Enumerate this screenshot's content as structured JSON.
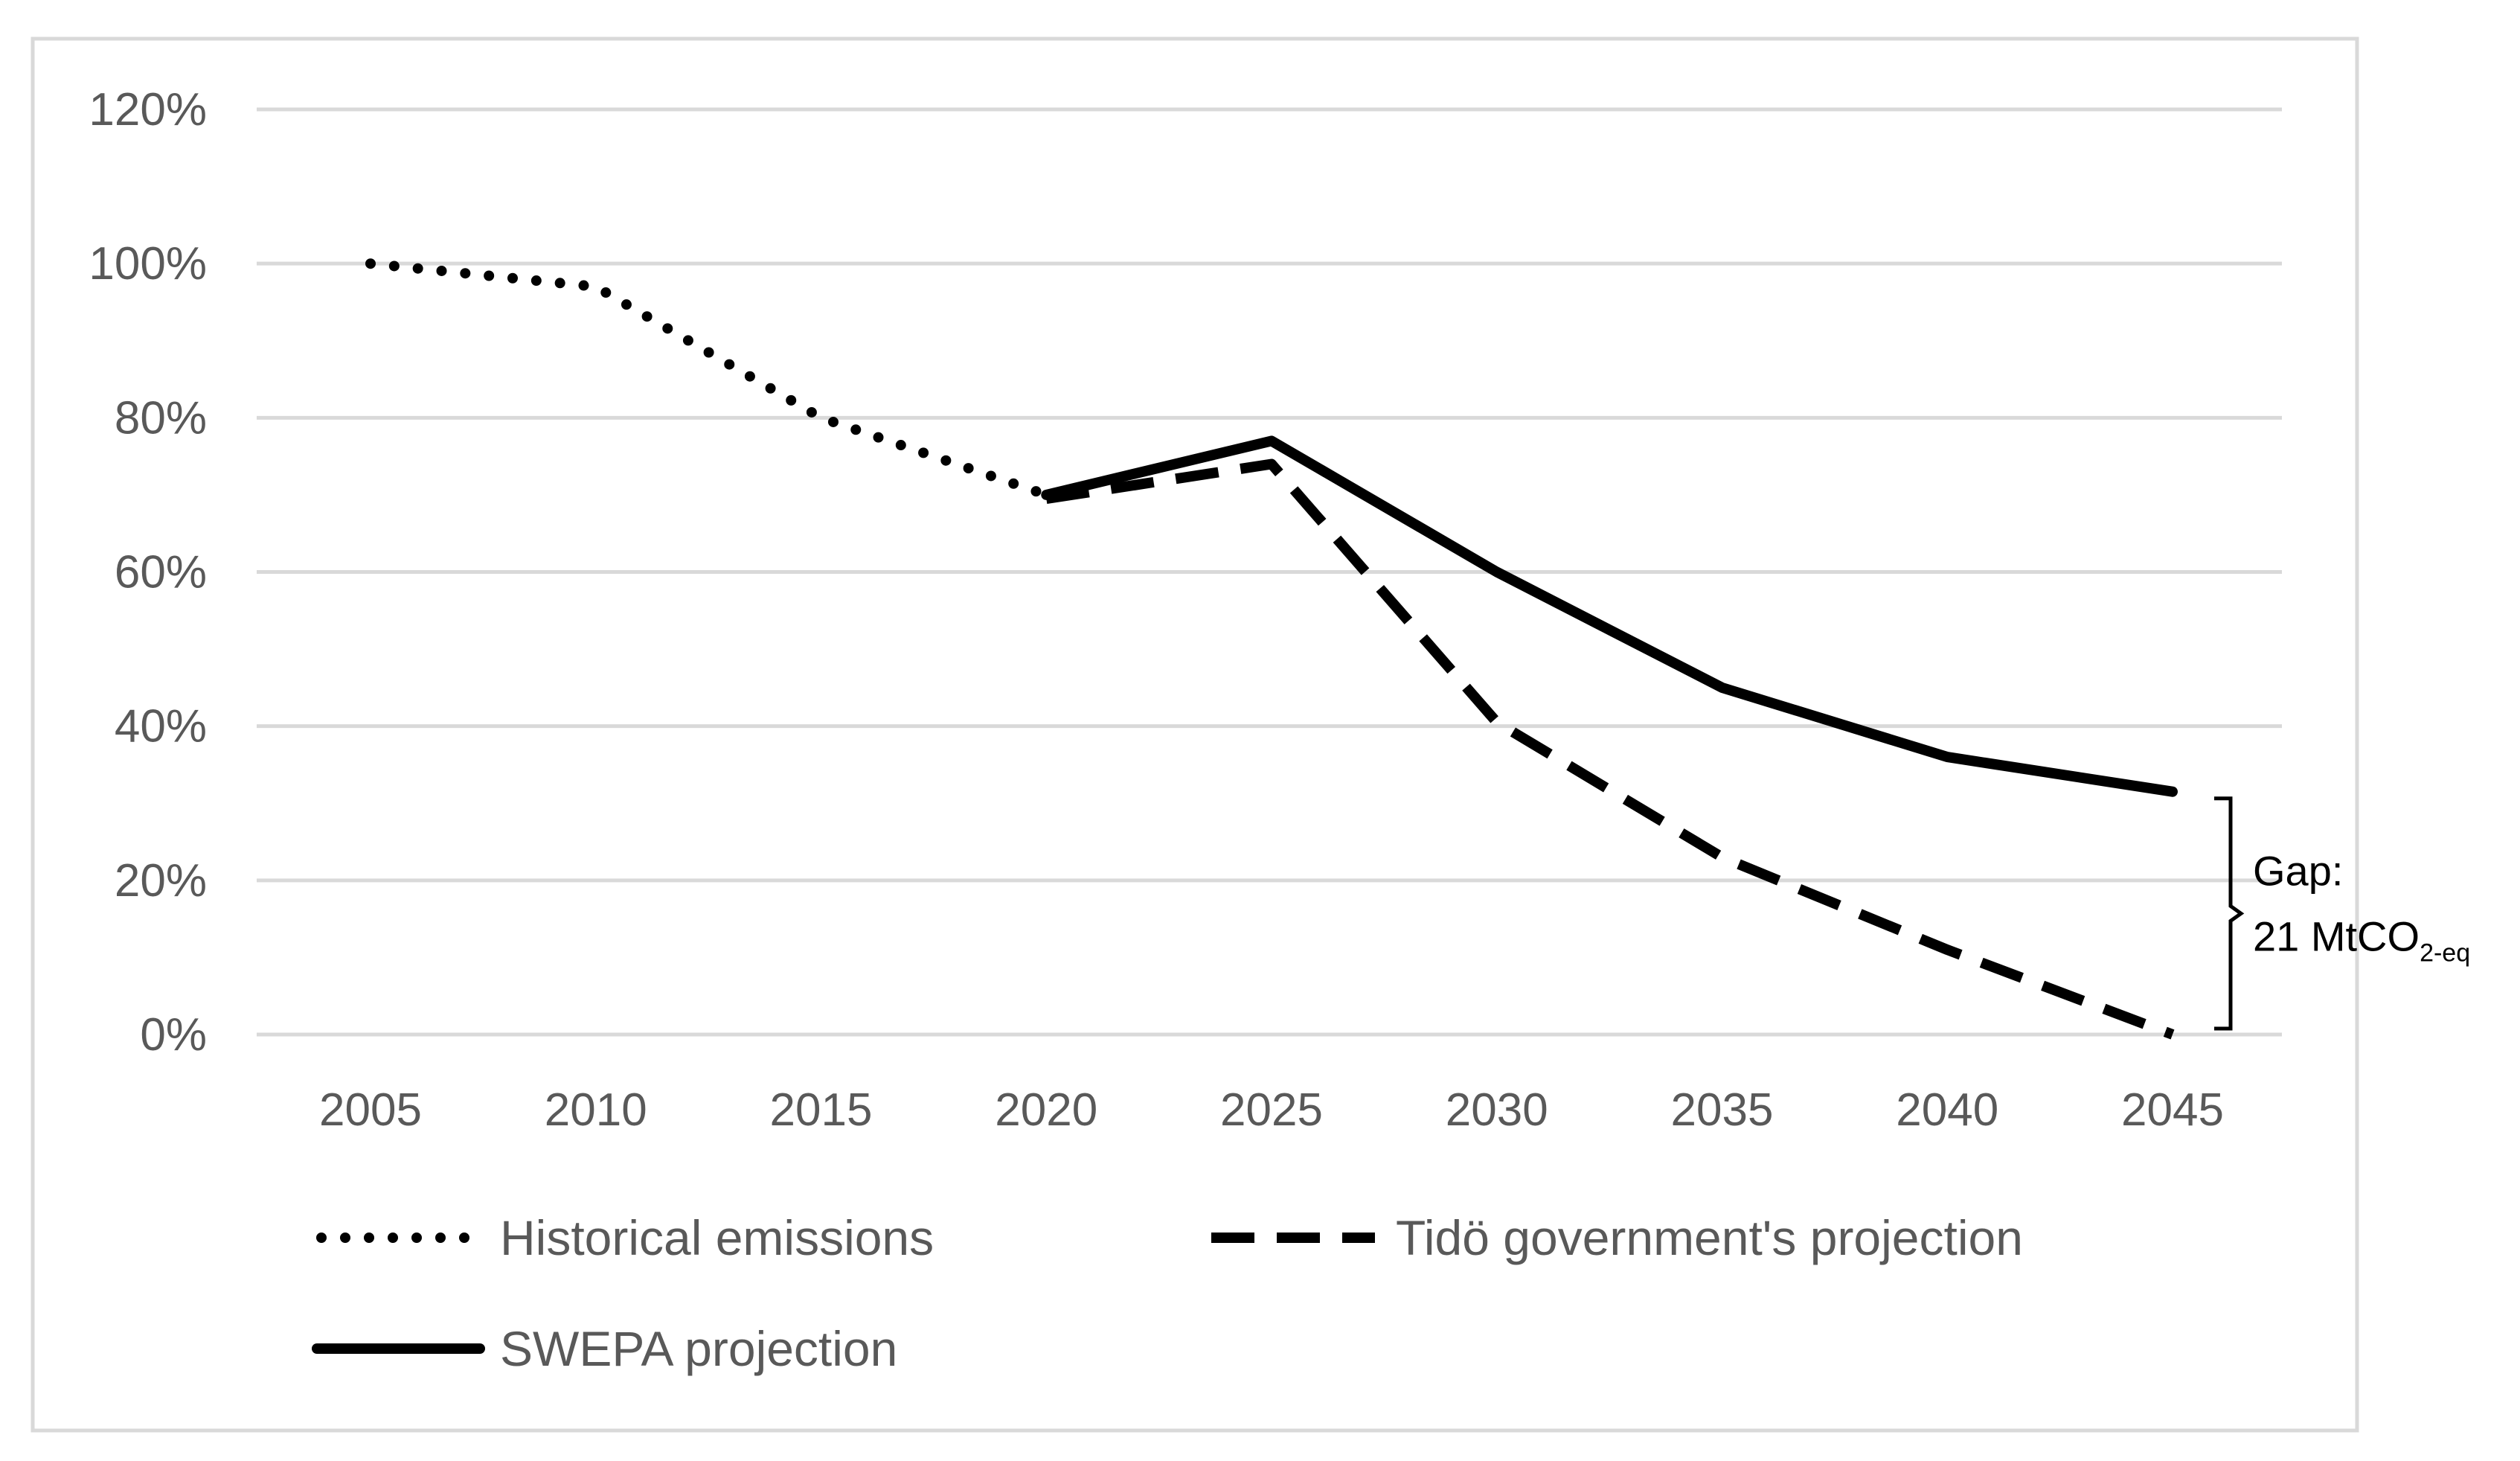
{
  "chart_data": {
    "type": "line",
    "title": "",
    "xlabel": "",
    "ylabel": "",
    "x": [
      2005,
      2010,
      2015,
      2020,
      2025,
      2030,
      2035,
      2040,
      2045
    ],
    "x_tick_labels": [
      "2005",
      "2010",
      "2015",
      "2020",
      "2025",
      "2030",
      "2035",
      "2040",
      "2045"
    ],
    "ylim": [
      0,
      120
    ],
    "y_ticks": [
      0,
      20,
      40,
      60,
      80,
      100,
      120
    ],
    "y_tick_labels": [
      "0%",
      "20%",
      "40%",
      "60%",
      "80%",
      "100%",
      "120%"
    ],
    "grid": "horizontal",
    "legend_position": "bottom",
    "series": [
      {
        "name": "Historical emissions",
        "style": "dotted",
        "color": "#000000",
        "points": [
          {
            "x": 2005,
            "y": 100
          },
          {
            "x": 2010,
            "y": 97
          },
          {
            "x": 2015,
            "y": 80
          },
          {
            "x": 2020,
            "y": 70
          }
        ]
      },
      {
        "name": "Tidö government's projection",
        "style": "dashed",
        "color": "#000000",
        "points": [
          {
            "x": 2020,
            "y": 69.5
          },
          {
            "x": 2025,
            "y": 74
          },
          {
            "x": 2030,
            "y": 40.5
          },
          {
            "x": 2035,
            "y": 23
          },
          {
            "x": 2040,
            "y": 11
          },
          {
            "x": 2045,
            "y": 0
          }
        ]
      },
      {
        "name": "SWEPA projection",
        "style": "solid",
        "color": "#000000",
        "points": [
          {
            "x": 2020,
            "y": 70
          },
          {
            "x": 2025,
            "y": 77
          },
          {
            "x": 2030,
            "y": 60
          },
          {
            "x": 2035,
            "y": 45
          },
          {
            "x": 2040,
            "y": 36
          },
          {
            "x": 2045,
            "y": 31.5
          }
        ]
      }
    ],
    "annotation": {
      "line1": "Gap:",
      "line2_main": "21 MtCO",
      "line2_sub": "2-eq",
      "x": 2045,
      "y_from": 0,
      "y_to": 31.5
    }
  }
}
